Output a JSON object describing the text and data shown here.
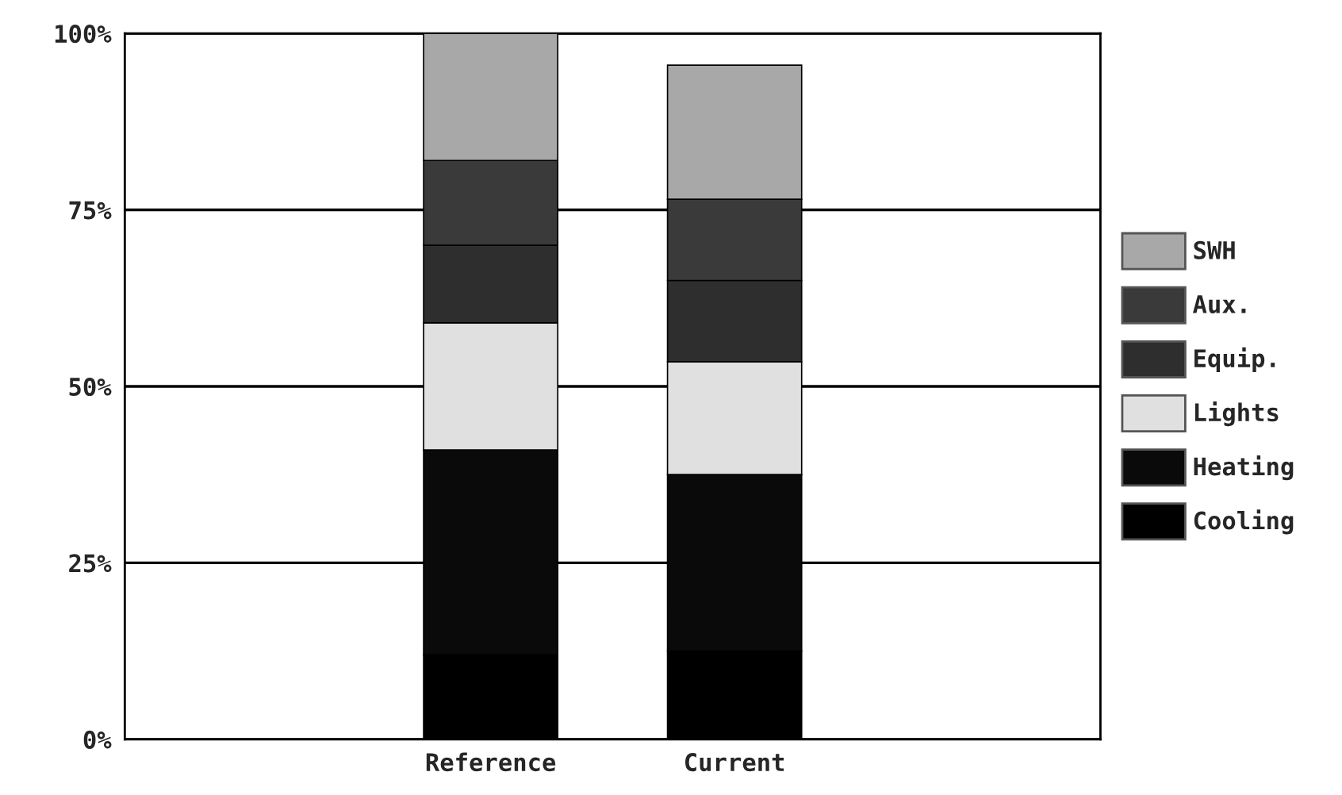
{
  "chart_data": {
    "type": "bar",
    "stacked": true,
    "categories": [
      "Reference",
      "Current"
    ],
    "series": [
      {
        "name": "Cooling",
        "color": "#000000",
        "values": [
          12,
          12.5
        ]
      },
      {
        "name": "Heating",
        "color": "#0a0a0a",
        "values": [
          29,
          25
        ]
      },
      {
        "name": "Lights",
        "color": "#e0e0e0",
        "values": [
          18,
          16
        ]
      },
      {
        "name": "Equip.",
        "color": "#2e2e2e",
        "values": [
          11,
          11.5
        ]
      },
      {
        "name": "Aux.",
        "color": "#3a3a3a",
        "values": [
          12,
          11.5
        ]
      },
      {
        "name": "SWH",
        "color": "#a8a8a8",
        "values": [
          18,
          19
        ]
      }
    ],
    "ylim": [
      0,
      100
    ],
    "yticks": [
      {
        "value": 0,
        "label": "0%"
      },
      {
        "value": 25,
        "label": "25%"
      },
      {
        "value": 50,
        "label": "50%"
      },
      {
        "value": 75,
        "label": "75%"
      },
      {
        "value": 100,
        "label": "100%"
      }
    ],
    "grid": "y",
    "legend": "right"
  }
}
